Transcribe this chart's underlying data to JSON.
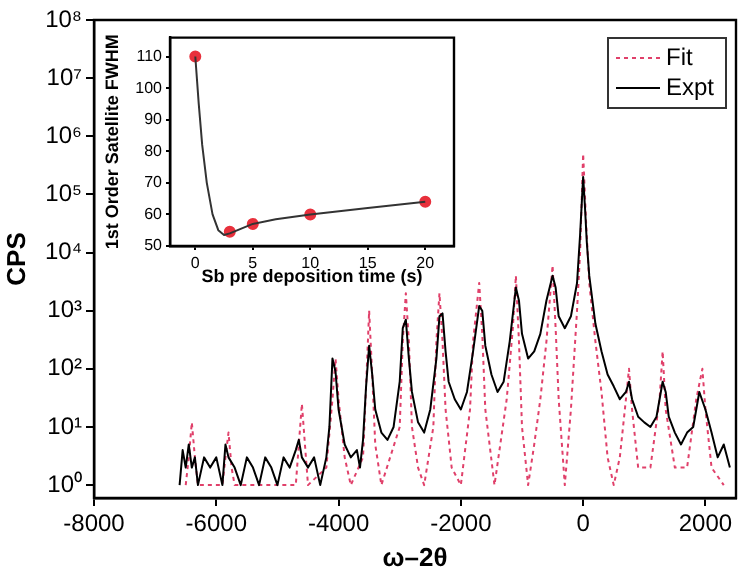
{
  "chart_data": [
    {
      "type": "line",
      "xlabel": "ω–2θ",
      "ylabel": "CPS",
      "log": "y",
      "legend": "top right",
      "marker": "none",
      "xlim": [
        -8000,
        2500
      ],
      "xticks": [
        -8000,
        -6000,
        -4000,
        -2000,
        0,
        2000
      ],
      "ylim": [
        0.6,
        100000000
      ],
      "yticks": [
        {
          "value": 1,
          "label": "10⁰"
        },
        {
          "value": 10,
          "label": "10¹"
        },
        {
          "value": 100,
          "label": "10²"
        },
        {
          "value": 1000,
          "label": "10³"
        },
        {
          "value": 10000,
          "label": "10⁴"
        },
        {
          "value": 100000,
          "label": "10⁵"
        },
        {
          "value": 1000000,
          "label": "10⁶"
        },
        {
          "value": 10000000,
          "label": "10⁷"
        },
        {
          "value": 100000000,
          "label": "10⁸"
        }
      ],
      "series": [
        {
          "name": "Expt",
          "color": "#000000",
          "line_style": "solid",
          "x": [
            -6600,
            -6550,
            -6500,
            -6450,
            -6400,
            -6350,
            -6300,
            -6200,
            -6100,
            -6000,
            -5900,
            -5850,
            -5800,
            -5700,
            -5600,
            -5500,
            -5400,
            -5300,
            -5200,
            -5100,
            -5000,
            -4900,
            -4800,
            -4700,
            -4650,
            -4600,
            -4500,
            -4400,
            -4300,
            -4200,
            -4150,
            -4100,
            -4050,
            -4000,
            -3900,
            -3800,
            -3700,
            -3650,
            -3600,
            -3550,
            -3500,
            -3450,
            -3400,
            -3300,
            -3200,
            -3100,
            -3000,
            -2950,
            -2900,
            -2850,
            -2800,
            -2700,
            -2600,
            -2500,
            -2400,
            -2350,
            -2300,
            -2250,
            -2200,
            -2100,
            -2000,
            -1900,
            -1800,
            -1700,
            -1650,
            -1600,
            -1500,
            -1400,
            -1300,
            -1200,
            -1100,
            -1050,
            -1000,
            -900,
            -800,
            -700,
            -600,
            -500,
            -450,
            -400,
            -300,
            -200,
            -100,
            -50,
            0,
            30,
            60,
            100,
            200,
            300,
            400,
            500,
            600,
            700,
            750,
            800,
            900,
            1000,
            1100,
            1200,
            1300,
            1350,
            1400,
            1500,
            1600,
            1700,
            1800,
            1900,
            2000,
            2100,
            2200,
            2300,
            2400
          ],
          "values": [
            1,
            4,
            2,
            5,
            2,
            3,
            1,
            3,
            2,
            3,
            1,
            5,
            3,
            2,
            1,
            3,
            2,
            1,
            3,
            2,
            1,
            3,
            2,
            4,
            6,
            3,
            2,
            3,
            1,
            3,
            10,
            150,
            90,
            20,
            5,
            3,
            4,
            2,
            6,
            50,
            250,
            80,
            20,
            8,
            6,
            10,
            60,
            500,
            700,
            150,
            40,
            12,
            8,
            20,
            150,
            800,
            900,
            200,
            60,
            30,
            20,
            40,
            200,
            1200,
            1000,
            250,
            80,
            40,
            60,
            300,
            2500,
            1500,
            400,
            150,
            200,
            400,
            1500,
            4000,
            2500,
            800,
            500,
            800,
            3000,
            20000,
            200000,
            60000,
            15000,
            4000,
            600,
            200,
            80,
            50,
            30,
            40,
            60,
            30,
            15,
            12,
            10,
            15,
            60,
            40,
            15,
            8,
            5,
            8,
            10,
            40,
            20,
            8,
            3,
            5,
            2
          ]
        },
        {
          "name": "Fit",
          "color": "#e0406a",
          "line_style": "dotted",
          "x": [
            -6500,
            -6450,
            -6400,
            -6350,
            -6300,
            -5900,
            -5850,
            -5800,
            -5750,
            -5700,
            -4700,
            -4650,
            -4600,
            -4550,
            -4500,
            -4200,
            -4100,
            -4050,
            -4000,
            -3900,
            -3800,
            -3600,
            -3550,
            -3500,
            -3450,
            -3400,
            -3300,
            -3000,
            -2950,
            -2900,
            -2850,
            -2800,
            -2700,
            -2600,
            -2450,
            -2400,
            -2350,
            -2300,
            -2250,
            -2150,
            -2000,
            -1850,
            -1800,
            -1700,
            -1650,
            -1600,
            -1450,
            -1250,
            -1150,
            -1100,
            -1050,
            -1000,
            -900,
            -800,
            -700,
            -600,
            -500,
            -450,
            -400,
            -300,
            -200,
            -100,
            -50,
            0,
            50,
            100,
            200,
            300,
            400,
            500,
            600,
            700,
            750,
            800,
            900,
            1100,
            1250,
            1300,
            1350,
            1500,
            1700,
            1850,
            1950,
            2000,
            2100,
            2300
          ],
          "values": [
            1,
            3,
            12,
            3,
            1,
            1,
            3,
            8,
            2,
            1,
            1,
            5,
            25,
            5,
            1,
            2,
            30,
            150,
            30,
            3,
            1,
            3,
            50,
            1000,
            80,
            5,
            1,
            10,
            300,
            2000,
            300,
            10,
            2,
            1,
            10,
            300,
            2000,
            300,
            20,
            2,
            1,
            20,
            300,
            3000,
            400,
            20,
            1,
            30,
            500,
            4000,
            300,
            10,
            1,
            5,
            30,
            300,
            6000,
            500,
            30,
            1,
            20,
            1000,
            10000,
            500000,
            30000,
            3000,
            300,
            40,
            3,
            1,
            3,
            30,
            100,
            20,
            2,
            2,
            30,
            200,
            20,
            2,
            2,
            30,
            100,
            20,
            2,
            1
          ]
        }
      ]
    },
    {
      "type": "scatter",
      "xlabel": "Sb pre deposition time (s)",
      "ylabel": "1st Order Satellite FWHM",
      "xlim": [
        -2.2,
        22.5
      ],
      "xticks": [
        0,
        5,
        10,
        15,
        20
      ],
      "ylim": [
        50,
        116
      ],
      "yticks": [
        50,
        60,
        70,
        80,
        90,
        100,
        110
      ],
      "series": [
        {
          "type": "line",
          "color": "#333333",
          "marker": "none",
          "x": [
            0,
            0.3,
            0.6,
            1,
            1.5,
            2,
            2.5,
            3,
            4,
            5,
            7,
            10,
            15,
            20
          ],
          "values": [
            110,
            95,
            82,
            70,
            60,
            55,
            53.5,
            54,
            55.5,
            57,
            58.5,
            60,
            62,
            64
          ]
        },
        {
          "type": "scatter",
          "color": "#e8303c",
          "marker": "circle",
          "x": [
            0,
            3,
            5,
            10,
            20
          ],
          "values": [
            110,
            54.5,
            57,
            60,
            64
          ]
        }
      ]
    }
  ]
}
